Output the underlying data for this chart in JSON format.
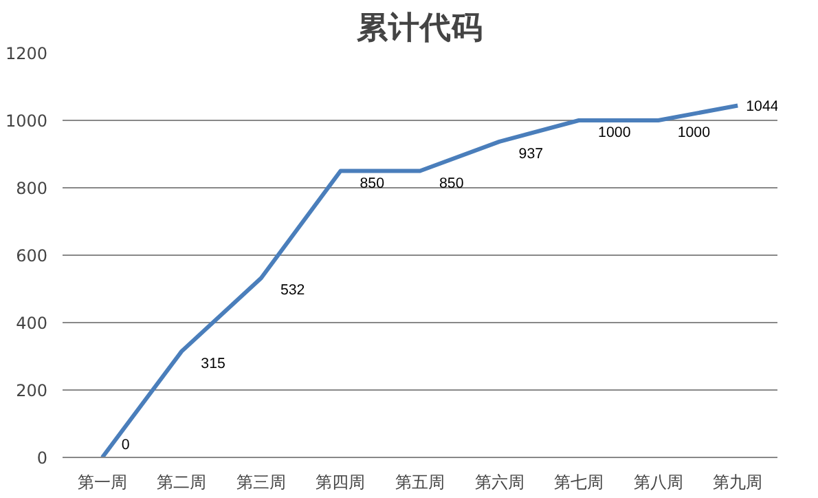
{
  "chart_data": {
    "type": "line",
    "title": "累计代码",
    "categories": [
      "第一周",
      "第二周",
      "第三周",
      "第四周",
      "第五周",
      "第六周",
      "第七周",
      "第八周",
      "第九周"
    ],
    "series": [
      {
        "color": "#4a7ebb",
        "values": [
          0,
          315,
          532,
          850,
          850,
          937,
          1000,
          1000,
          1044
        ]
      }
    ],
    "ylim": [
      0,
      1200
    ],
    "yticks": [
      0,
      200,
      400,
      600,
      800,
      1000,
      1200
    ],
    "grid": "y",
    "data_labels": true,
    "marker": "none",
    "line_style": "solid"
  }
}
